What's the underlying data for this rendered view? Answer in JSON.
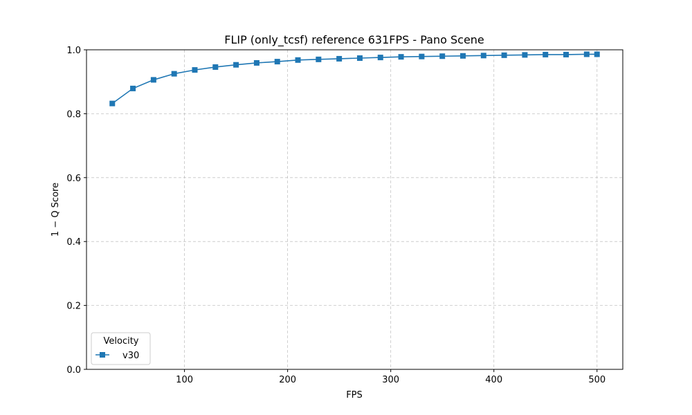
{
  "chart_data": {
    "type": "line",
    "title": "FLIP (only_tcsf) reference 631FPS - Pano Scene",
    "xlabel": "FPS",
    "ylabel": "1 − Q Score",
    "xlim": [
      5,
      525
    ],
    "ylim": [
      0.0,
      1.0
    ],
    "xticks": [
      100,
      200,
      300,
      400,
      500
    ],
    "yticks": [
      0.0,
      0.2,
      0.4,
      0.6,
      0.8,
      1.0
    ],
    "grid": true,
    "legend": {
      "title": "Velocity",
      "location": "lower-left"
    },
    "x": [
      30,
      50,
      70,
      90,
      110,
      130,
      150,
      170,
      190,
      210,
      230,
      250,
      270,
      290,
      310,
      330,
      350,
      370,
      390,
      410,
      430,
      450,
      470,
      490,
      500
    ],
    "series": [
      {
        "name": "v30",
        "color": "#1f77b4",
        "marker": "square",
        "values": [
          0.832,
          0.879,
          0.906,
          0.925,
          0.937,
          0.946,
          0.953,
          0.959,
          0.963,
          0.968,
          0.97,
          0.972,
          0.974,
          0.976,
          0.978,
          0.979,
          0.98,
          0.981,
          0.982,
          0.983,
          0.984,
          0.985,
          0.985,
          0.986,
          0.986
        ]
      }
    ]
  }
}
